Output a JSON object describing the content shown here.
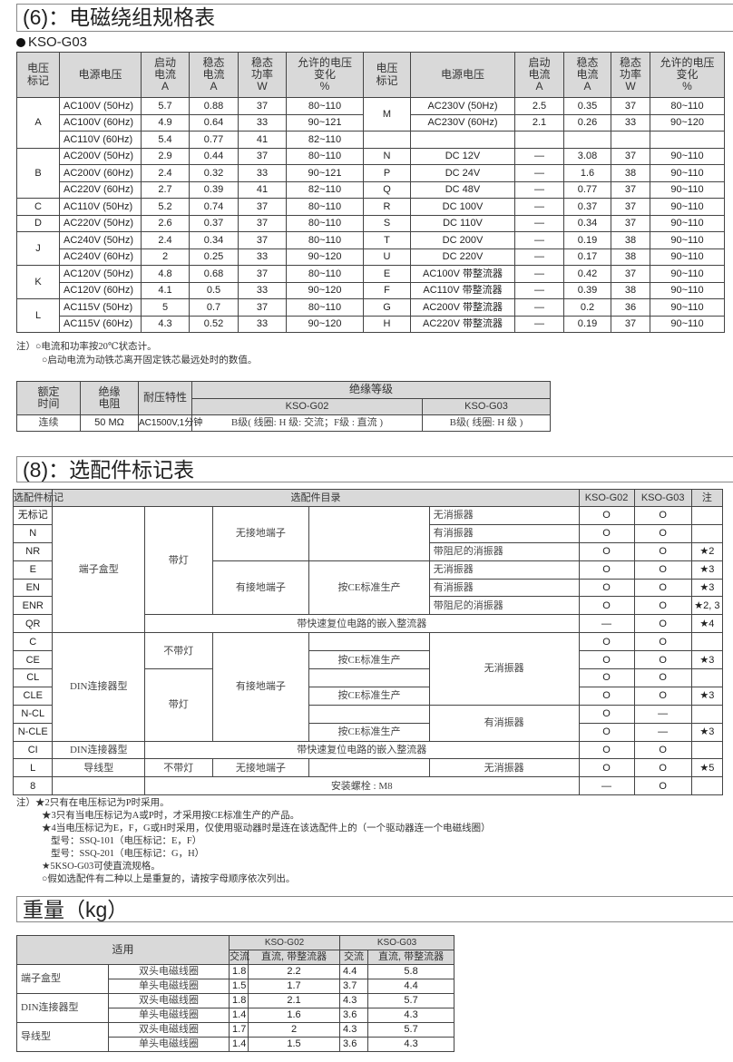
{
  "section6": {
    "title": "(6)：电磁绕组规格表",
    "model": "KSO-G03",
    "headers": [
      "电压\n标记",
      "电源电压",
      "启动\n电流\nA",
      "稳态\n电流\nA",
      "稳态\n功率\nW",
      "允许的电压\n变化\n%"
    ],
    "left_groups": [
      {
        "mark": "A",
        "rows": [
          [
            "AC100V (50Hz)",
            "5.7",
            "0.88",
            "37",
            "80~110"
          ],
          [
            "AC100V (60Hz)",
            "4.9",
            "0.64",
            "33",
            "90~121"
          ],
          [
            "AC110V (60Hz)",
            "5.4",
            "0.77",
            "41",
            "82~110"
          ]
        ]
      },
      {
        "mark": "B",
        "rows": [
          [
            "AC200V (50Hz)",
            "2.9",
            "0.44",
            "37",
            "80~110"
          ],
          [
            "AC200V (60Hz)",
            "2.4",
            "0.32",
            "33",
            "90~121"
          ],
          [
            "AC220V (60Hz)",
            "2.7",
            "0.39",
            "41",
            "82~110"
          ]
        ]
      },
      {
        "mark": "C",
        "rows": [
          [
            "AC110V (50Hz)",
            "5.2",
            "0.74",
            "37",
            "80~110"
          ]
        ]
      },
      {
        "mark": "D",
        "rows": [
          [
            "AC220V (50Hz)",
            "2.6",
            "0.37",
            "37",
            "80~110"
          ]
        ]
      },
      {
        "mark": "J",
        "rows": [
          [
            "AC240V (50Hz)",
            "2.4",
            "0.34",
            "37",
            "80~110"
          ],
          [
            "AC240V (60Hz)",
            "2",
            "0.25",
            "33",
            "90~120"
          ]
        ]
      },
      {
        "mark": "K",
        "rows": [
          [
            "AC120V (50Hz)",
            "4.8",
            "0.68",
            "37",
            "80~110"
          ],
          [
            "AC120V (60Hz)",
            "4.1",
            "0.5",
            "33",
            "90~120"
          ]
        ]
      },
      {
        "mark": "L",
        "rows": [
          [
            "AC115V (50Hz)",
            "5",
            "0.7",
            "37",
            "80~110"
          ],
          [
            "AC115V (60Hz)",
            "4.3",
            "0.52",
            "33",
            "90~120"
          ]
        ]
      }
    ],
    "right_groups": [
      {
        "mark": "M",
        "rows": [
          [
            "AC230V (50Hz)",
            "2.5",
            "0.35",
            "37",
            "80~110"
          ],
          [
            "AC230V (60Hz)",
            "2.1",
            "0.26",
            "33",
            "90~120"
          ]
        ]
      },
      {
        "mark": "",
        "rows": [
          [
            "",
            "",
            "",
            "",
            ""
          ]
        ]
      },
      {
        "mark": "N",
        "rows": [
          [
            "DC 12V",
            "—",
            "3.08",
            "37",
            "90~110"
          ]
        ]
      },
      {
        "mark": "P",
        "rows": [
          [
            "DC 24V",
            "—",
            "1.6",
            "38",
            "90~110"
          ]
        ]
      },
      {
        "mark": "Q",
        "rows": [
          [
            "DC 48V",
            "—",
            "0.77",
            "37",
            "90~110"
          ]
        ]
      },
      {
        "mark": "R",
        "rows": [
          [
            "DC 100V",
            "—",
            "0.37",
            "37",
            "90~110"
          ]
        ]
      },
      {
        "mark": "S",
        "rows": [
          [
            "DC 110V",
            "—",
            "0.34",
            "37",
            "90~110"
          ]
        ]
      },
      {
        "mark": "T",
        "rows": [
          [
            "DC 200V",
            "—",
            "0.19",
            "38",
            "90~110"
          ]
        ]
      },
      {
        "mark": "U",
        "rows": [
          [
            "DC 220V",
            "—",
            "0.17",
            "38",
            "90~110"
          ]
        ]
      },
      {
        "mark": "E",
        "rows": [
          [
            "AC100V 带整流器",
            "—",
            "0.42",
            "37",
            "90~110"
          ]
        ]
      },
      {
        "mark": "F",
        "rows": [
          [
            "AC110V 带整流器",
            "—",
            "0.39",
            "38",
            "90~110"
          ]
        ]
      },
      {
        "mark": "G",
        "rows": [
          [
            "AC200V 带整流器",
            "—",
            "0.2",
            "36",
            "90~110"
          ]
        ]
      },
      {
        "mark": "H",
        "rows": [
          [
            "AC220V 带整流器",
            "—",
            "0.19",
            "37",
            "90~110"
          ]
        ]
      }
    ],
    "notes": [
      "注）○电流和功率按20℃状态计。",
      "○启动电流为动铁芯离开固定铁芯最远处时的数值。"
    ],
    "insulation": {
      "h_time": "额定\n时间",
      "h_res": "绝缘\n电阻",
      "h_volt": "耐压特性",
      "h_class": "绝缘等级",
      "h_g02": "KSO-G02",
      "h_g03": "KSO-G03",
      "time": "连续",
      "res": "50 MΩ",
      "volt": "AC1500V,1分钟",
      "g02": "B级( 线圈: H 级: 交流；F级 : 直流 )",
      "g03": "B级( 线圈: H 级 )"
    }
  },
  "section8": {
    "title": "(8)：选配件标记表",
    "headers": {
      "mark": "选配件标记",
      "catalog": "选配件目录",
      "g02": "KSO-G02",
      "g03": "KSO-G03",
      "note": "注"
    },
    "rows": [
      {
        "mark": "无标记",
        "cells": [
          "端子盒型",
          "带灯",
          "无接地端子",
          "",
          "无消振器"
        ],
        "g02": "O",
        "g03": "O",
        "note": ""
      },
      {
        "mark": "N",
        "cells": [
          "有消振器"
        ],
        "g02": "O",
        "g03": "O",
        "note": ""
      },
      {
        "mark": "NR",
        "cells": [
          "带阻尼的消振器"
        ],
        "g02": "O",
        "g03": "O",
        "note": "★2"
      },
      {
        "mark": "E",
        "cells": [
          "有接地端子",
          "按CE标准生产",
          "无消振器"
        ],
        "g02": "O",
        "g03": "O",
        "note": "★3"
      },
      {
        "mark": "EN",
        "cells": [
          "有消振器"
        ],
        "g02": "O",
        "g03": "O",
        "note": "★3"
      },
      {
        "mark": "ENR",
        "cells": [
          "带阻尼的消振器"
        ],
        "g02": "O",
        "g03": "O",
        "note": "★2, 3"
      },
      {
        "mark": "QR",
        "cells": [
          "带快速复位电路的嵌入整流器"
        ],
        "g02": "—",
        "g03": "O",
        "note": "★4"
      },
      {
        "mark": "C",
        "cells": [
          "DIN连接器型",
          "不带灯",
          "有接地端子",
          "",
          "无消振器"
        ],
        "g02": "O",
        "g03": "O",
        "note": ""
      },
      {
        "mark": "CE",
        "cells": [
          "按CE标准生产"
        ],
        "g02": "O",
        "g03": "O",
        "note": "★3"
      },
      {
        "mark": "CL",
        "cells": [
          "带灯",
          ""
        ],
        "g02": "O",
        "g03": "O",
        "note": ""
      },
      {
        "mark": "CLE",
        "cells": [
          "按CE标准生产"
        ],
        "g02": "O",
        "g03": "O",
        "note": "★3"
      },
      {
        "mark": "N-CL",
        "cells": [
          "",
          "有消振器"
        ],
        "g02": "O",
        "g03": "—",
        "note": ""
      },
      {
        "mark": "N-CLE",
        "cells": [
          "按CE标准生产"
        ],
        "g02": "O",
        "g03": "—",
        "note": "★3"
      },
      {
        "mark": "CI",
        "cells": [
          "DIN连接器型",
          "带快速复位电路的嵌入整流器"
        ],
        "g02": "O",
        "g03": "O",
        "note": ""
      },
      {
        "mark": "L",
        "cells": [
          "导线型",
          "不带灯",
          "无接地端子",
          "",
          "无消振器"
        ],
        "g02": "O",
        "g03": "O",
        "note": "★5"
      },
      {
        "mark": "8",
        "cells": [
          "",
          "安装螺栓 : M8"
        ],
        "g02": "—",
        "g03": "O",
        "note": ""
      }
    ],
    "notes": [
      "注）★2只有在电压标记为P时采用。",
      "★3只有当电压标记为A或P时，才采用按CE标准生产的产品。",
      "★4当电压标记为E，F，G或H时采用，仅使用驱动器时是连在该选配件上的（一个驱动器连一个电磁线圈）",
      "型号：SSQ-101（电压标记：E，F）",
      "型号：SSQ-201（电压标记：G，H）",
      "★5KSO-G03可使直流规格。",
      "○假如选配件有二种以上是重复的，请按字母顺序依次列出。"
    ]
  },
  "weight": {
    "title": "重量（kg）",
    "headers": {
      "apply": "适用",
      "g02": "KSO-G02",
      "g03": "KSO-G03",
      "ac": "交流",
      "dc": "直流, 带整流器"
    },
    "groups": [
      {
        "type": "端子盒型",
        "rows": [
          [
            "双头电磁线圈",
            "1.8",
            "2.2",
            "4.4",
            "5.8"
          ],
          [
            "单头电磁线圈",
            "1.5",
            "1.7",
            "3.7",
            "4.4"
          ]
        ]
      },
      {
        "type": "DIN连接器型",
        "rows": [
          [
            "双头电磁线圈",
            "1.8",
            "2.1",
            "4.3",
            "5.7"
          ],
          [
            "单头电磁线圈",
            "1.4",
            "1.6",
            "3.6",
            "4.3"
          ]
        ]
      },
      {
        "type": "导线型",
        "rows": [
          [
            "双头电磁线圈",
            "1.7",
            "2",
            "4.3",
            "5.7"
          ],
          [
            "单头电磁线圈",
            "1.4",
            "1.5",
            "3.6",
            "4.3"
          ]
        ]
      }
    ]
  }
}
